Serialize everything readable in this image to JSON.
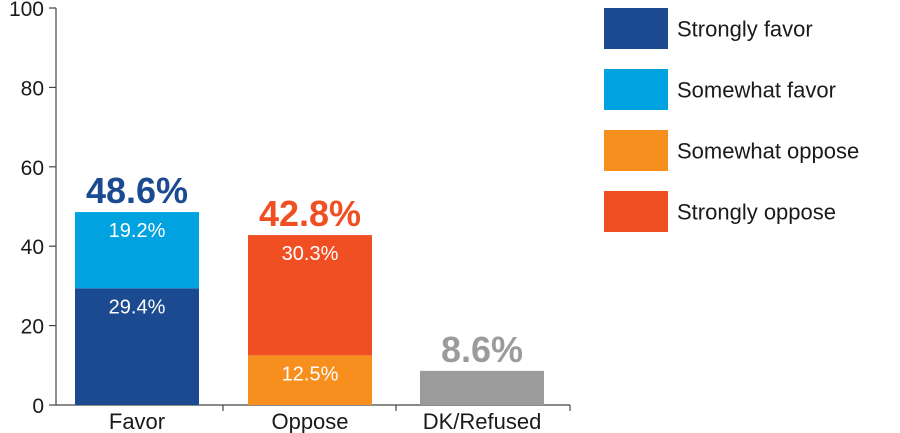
{
  "chart_data": {
    "type": "bar",
    "stacked": true,
    "ylim": [
      0,
      100
    ],
    "yticks": [
      "0",
      "20",
      "40",
      "60",
      "80",
      "100"
    ],
    "categories": [
      "Favor",
      "Oppose",
      "DK/Refused"
    ],
    "series": [
      {
        "name": "Strongly favor",
        "color": "#1B4A91",
        "values": [
          29.4,
          0,
          0
        ],
        "labels": [
          "29.4%",
          "",
          ""
        ]
      },
      {
        "name": "Somewhat favor",
        "color": "#00A3E0",
        "values": [
          19.2,
          0,
          0
        ],
        "labels": [
          "19.2%",
          "",
          ""
        ]
      },
      {
        "name": "Somewhat oppose",
        "color": "#F78F1E",
        "values": [
          0,
          12.5,
          0
        ],
        "labels": [
          "",
          "12.5%",
          ""
        ]
      },
      {
        "name": "Strongly oppose",
        "color": "#F04E23",
        "values": [
          0,
          30.3,
          0
        ],
        "labels": [
          "",
          "30.3%",
          ""
        ]
      }
    ],
    "other": {
      "color": "#9B9B9B",
      "values": [
        0,
        0,
        8.6
      ]
    },
    "totals": [
      {
        "label": "48.6%",
        "value": 48.6,
        "color": "#1B4A91"
      },
      {
        "label": "42.8%",
        "value": 42.8,
        "color": "#F04E23"
      },
      {
        "label": "8.6%",
        "value": 8.6,
        "color": "#9B9B9B"
      }
    ],
    "legend_position": "right",
    "grid": false
  }
}
